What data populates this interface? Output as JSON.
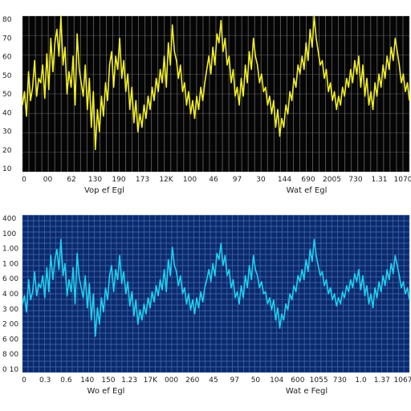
{
  "chart_data": [
    {
      "type": "line",
      "title": "",
      "ylabel": "",
      "xlabels": [
        "Vop ef Egl",
        "Wat ef Egl"
      ],
      "background": "#050505",
      "grid_color": "#8a8a8a",
      "line_color": "#f2ef22",
      "ylim": [
        10,
        80
      ],
      "y_ticks": [
        "80",
        "70",
        "60",
        "50",
        "50",
        "40",
        "30",
        "20",
        "10"
      ],
      "x_ticks": [
        "0",
        "00",
        "62",
        "130",
        "190",
        "173",
        "12K",
        "100",
        "46",
        "97",
        "30",
        "144",
        "690",
        "2005",
        "730",
        "1.31",
        "1070"
      ],
      "grid": true,
      "values": [
        40,
        46,
        35,
        55,
        42,
        48,
        60,
        44,
        52,
        50,
        58,
        43,
        63,
        47,
        70,
        55,
        68,
        74,
        62,
        80,
        58,
        66,
        45,
        55,
        48,
        62,
        40,
        72,
        56,
        50,
        44,
        58,
        38,
        52,
        30,
        46,
        20,
        38,
        28,
        44,
        35,
        50,
        42,
        58,
        64,
        48,
        62,
        56,
        70,
        52,
        60,
        46,
        54,
        38,
        48,
        32,
        42,
        28,
        36,
        30,
        40,
        34,
        44,
        38,
        48,
        42,
        52,
        46,
        56,
        50,
        62,
        48,
        68,
        58,
        76,
        64,
        60,
        52,
        58,
        46,
        50,
        40,
        46,
        36,
        42,
        34,
        44,
        38,
        48,
        42,
        50,
        56,
        62,
        54,
        66,
        58,
        72,
        68,
        78,
        64,
        70,
        58,
        62,
        50,
        56,
        44,
        48,
        40,
        52,
        44,
        58,
        50,
        64,
        56,
        70,
        62,
        58,
        50,
        54,
        46,
        48,
        40,
        44,
        36,
        42,
        30,
        38,
        26,
        34,
        30,
        40,
        36,
        46,
        42,
        52,
        48,
        58,
        54,
        62,
        56,
        68,
        60,
        74,
        66,
        80,
        70,
        64,
        58,
        60,
        52,
        56,
        46,
        50,
        42,
        46,
        38,
        44,
        40,
        48,
        44,
        52,
        48,
        56,
        50,
        60,
        54,
        62,
        48,
        58,
        44,
        52,
        40,
        46,
        38,
        50,
        44,
        54,
        48,
        58,
        52,
        62,
        56,
        66,
        60,
        70,
        64,
        58,
        50,
        54,
        46,
        50,
        42
      ]
    },
    {
      "type": "line",
      "title": "",
      "ylabel": "",
      "xlabels": [
        "Wo ef Egl",
        "Wat e Fegl"
      ],
      "background": "#0b2a6e",
      "grid_color": "#5f86c9",
      "line_color": "#1fd0f0",
      "ylim": [
        10,
        400
      ],
      "y_ticks": [
        "400",
        "100",
        "1.00",
        "1 00",
        "6 00",
        "4 00",
        "3 00",
        "2 00",
        "6 00",
        "8 00",
        "0 10"
      ],
      "x_ticks": [
        "0",
        "0.3",
        "0.6",
        "140",
        "150",
        "1.23",
        "17K",
        "000",
        "260",
        "45",
        "97",
        "50",
        "104",
        "600",
        "1055",
        "730",
        "1.0",
        "1.37",
        "1067"
      ],
      "grid": true,
      "values": [
        180,
        200,
        160,
        240,
        190,
        210,
        260,
        200,
        230,
        220,
        250,
        195,
        270,
        210,
        300,
        240,
        290,
        315,
        265,
        340,
        250,
        280,
        200,
        240,
        210,
        270,
        180,
        305,
        245,
        220,
        195,
        250,
        170,
        230,
        140,
        205,
        100,
        170,
        130,
        195,
        160,
        220,
        190,
        250,
        275,
        210,
        265,
        240,
        300,
        230,
        260,
        205,
        235,
        175,
        210,
        150,
        190,
        130,
        165,
        140,
        180,
        155,
        195,
        170,
        210,
        185,
        225,
        200,
        240,
        215,
        265,
        210,
        290,
        250,
        320,
        275,
        260,
        225,
        250,
        205,
        220,
        180,
        205,
        165,
        190,
        155,
        195,
        170,
        210,
        185,
        220,
        240,
        265,
        235,
        280,
        250,
        305,
        290,
        330,
        275,
        300,
        250,
        265,
        220,
        240,
        195,
        210,
        180,
        225,
        195,
        250,
        220,
        275,
        240,
        300,
        265,
        250,
        220,
        235,
        205,
        210,
        180,
        195,
        165,
        190,
        140,
        170,
        120,
        155,
        140,
        180,
        165,
        205,
        190,
        225,
        210,
        250,
        235,
        265,
        240,
        290,
        260,
        315,
        285,
        340,
        300,
        275,
        250,
        260,
        225,
        240,
        205,
        220,
        190,
        205,
        175,
        195,
        180,
        210,
        195,
        225,
        210,
        240,
        220,
        255,
        235,
        265,
        215,
        250,
        200,
        225,
        180,
        205,
        170,
        220,
        195,
        235,
        210,
        250,
        225,
        265,
        240,
        280,
        255,
        300,
        275,
        250,
        220,
        235,
        205,
        220,
        190
      ]
    }
  ]
}
